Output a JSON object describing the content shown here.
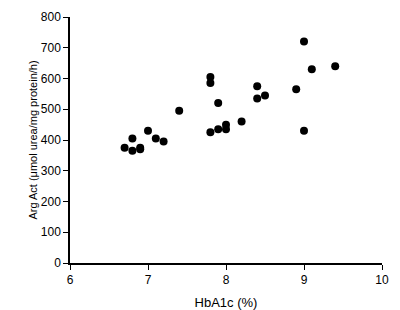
{
  "chart_data": {
    "type": "scatter",
    "x_label": "HbA1c (%)",
    "y_label": "Arg Act (μmol urea/mg protein/h)",
    "x": [
      6.7,
      6.8,
      6.8,
      6.9,
      6.9,
      7.0,
      7.1,
      7.2,
      7.4,
      7.8,
      7.8,
      7.8,
      7.9,
      7.9,
      8.0,
      8.0,
      8.2,
      8.4,
      8.4,
      8.5,
      8.9,
      9.0,
      9.0,
      9.1,
      9.4
    ],
    "values": [
      375,
      405,
      365,
      370,
      375,
      430,
      405,
      395,
      495,
      605,
      585,
      425,
      435,
      520,
      450,
      435,
      460,
      575,
      535,
      545,
      565,
      720,
      430,
      630,
      640
    ],
    "color": "#000000",
    "marker": "circle",
    "xlim": [
      6,
      10
    ],
    "xticks": [
      6,
      7,
      8,
      9,
      10
    ],
    "ylim": [
      0,
      800
    ],
    "yticks": [
      0,
      100,
      200,
      300,
      400,
      500,
      600,
      700,
      800
    ],
    "grid": false
  }
}
